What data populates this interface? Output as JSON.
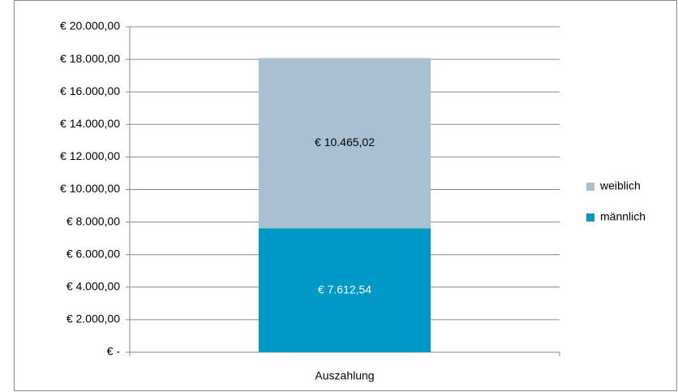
{
  "chart_data": {
    "type": "stacked_bar",
    "categories": [
      "Auszahlung"
    ],
    "series": [
      {
        "name": "männlich",
        "color": "#0098c6",
        "values": [
          7612.54
        ],
        "value_labels": [
          "€ 7.612,54"
        ],
        "label_color": "#ffffff"
      },
      {
        "name": "weiblich",
        "color": "#a9c0d3",
        "values": [
          10465.02
        ],
        "value_labels": [
          "€ 10.465,02"
        ],
        "label_color": "#000000"
      }
    ],
    "ylim": [
      0,
      20000
    ],
    "yticks": [
      {
        "value": 0,
        "label": "€ -"
      },
      {
        "value": 2000,
        "label": "€ 2.000,00"
      },
      {
        "value": 4000,
        "label": "€ 4.000,00"
      },
      {
        "value": 6000,
        "label": "€ 6.000,00"
      },
      {
        "value": 8000,
        "label": "€ 8.000,00"
      },
      {
        "value": 10000,
        "label": "€ 10.000,00"
      },
      {
        "value": 12000,
        "label": "€ 12.000,00"
      },
      {
        "value": 14000,
        "label": "€ 14.000,00"
      },
      {
        "value": 16000,
        "label": "€ 16.000,00"
      },
      {
        "value": 18000,
        "label": "€ 18.000,00"
      },
      {
        "value": 20000,
        "label": "€ 20.000,00"
      }
    ],
    "grid": true,
    "legend": "right"
  }
}
